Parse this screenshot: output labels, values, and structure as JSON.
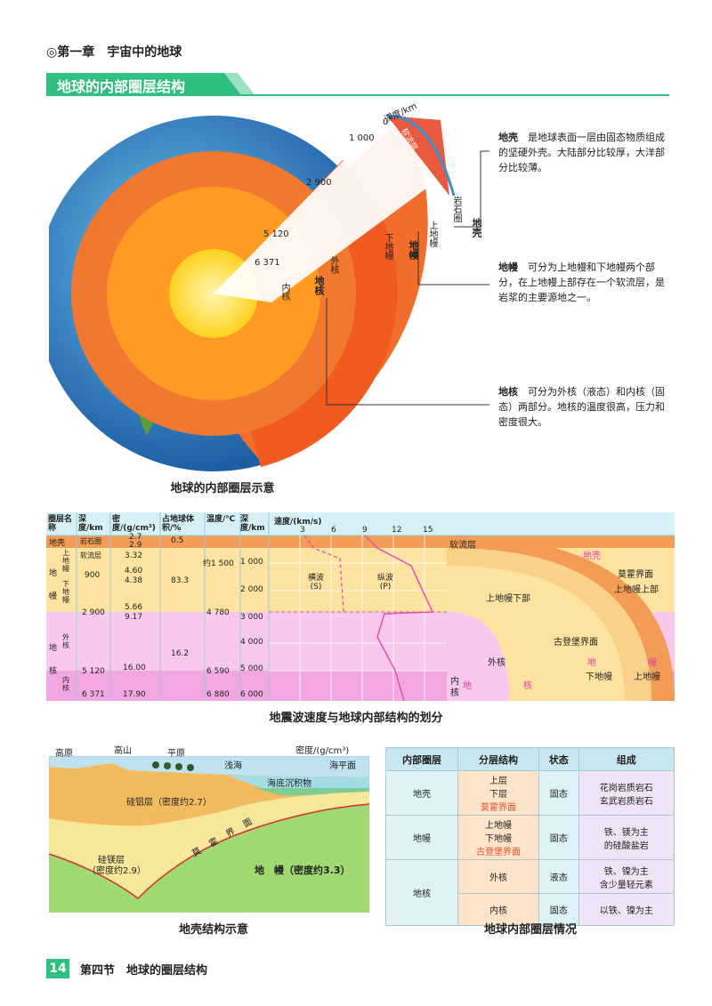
{
  "header": {
    "chapter": "◎第一章　宇宙中的地球",
    "section_title": "地球的内部圈层结构"
  },
  "globe": {
    "axis_title": "深度/km",
    "depths": [
      "0",
      "1 000",
      "2 900",
      "5 120",
      "6 371"
    ],
    "layer_labels": {
      "soft": "软流层",
      "lithosphere": "岩石圈",
      "crust": "地壳",
      "upper_mantle": "上地幔",
      "lower_mantle": "下地幔",
      "mantle": "地幔",
      "outer_core": "外核",
      "inner_core": "内核",
      "core": "地核"
    },
    "notes": [
      {
        "term": "地壳",
        "text": "是地球表面一层由固态物质组成的坚硬外壳。大陆部分比较厚，大洋部分比较薄。"
      },
      {
        "term": "地幔",
        "text": "可分为上地幔和下地幔两个部分，在上地幔上部存在一个软流层，是岩浆的主要源地之一。"
      },
      {
        "term": "地核",
        "text": "可分为外核（液态）和内核（固态）两部分。地核的温度很高，压力和密度很大。"
      }
    ],
    "caption": "地球的内部圈层示意"
  },
  "seismic": {
    "headers": [
      "圈层名称",
      "深度/km",
      "密度/(g/cm³)",
      "占地球体积/%",
      "温度/℃",
      "深度/km",
      "速度/(km/s)"
    ],
    "speed_ticks": [
      "3",
      "6",
      "9",
      "12",
      "15"
    ],
    "layers": [
      "地壳",
      "上地幔",
      "下地幔",
      "地幔",
      "外核",
      "内核",
      "地核"
    ],
    "col_values": {
      "rock": "岩石圈",
      "soft": "软流层",
      "depth_900": "900",
      "depth_2900": "2 900",
      "depth_5120": "5 120",
      "depth_6371": "6 371",
      "dens": [
        "2.7",
        "2.9",
        "3.32",
        "4.60",
        "4.38",
        "5.66",
        "9.17",
        "16.00",
        "17.90"
      ],
      "vol": [
        "0.5",
        "83.3",
        "16.2"
      ],
      "temp": [
        "约1 500",
        "4 780",
        "6 590",
        "6 880"
      ]
    },
    "depth_ticks": [
      "1 000",
      "2 000",
      "3 000",
      "4 000",
      "5 000",
      "6 000"
    ],
    "wave_s": "横波(S)",
    "wave_p": "纵波(P)",
    "right_labels": {
      "soft": "软流层",
      "crust": "地壳",
      "moho": "莫霍界面",
      "upper_top": "上地幔上部",
      "upper_bottom": "上地幔下部",
      "gutenberg": "古登堡界面",
      "outer": "外核",
      "mantle_a": "地",
      "mantle_b": "幔",
      "lower": "下地幔",
      "upper": "上地幔",
      "inner": "内核",
      "core_a": "地",
      "core_b": "核"
    },
    "caption": "地震波速度与地球内部结构的划分"
  },
  "crust_fig": {
    "landforms": [
      "高原",
      "高山",
      "平原",
      "浅海"
    ],
    "density_label": "密度/(g/cm³)",
    "sea_level": "海平面",
    "sediment": "海底沉积物",
    "sial": "硅铝层（密度约2.7）",
    "sima_a": "硅镁层",
    "sima_b": "（密度约2.9）",
    "moho": "莫霍界面",
    "mantle": "地　幔（密度约3.3）",
    "caption": "地壳结构示意"
  },
  "info_table": {
    "headers": [
      "内部圈层",
      "分层结构",
      "状态",
      "组成"
    ],
    "rows": [
      {
        "layer": "地壳",
        "structure": [
          "上层",
          "下层"
        ],
        "state": "固态",
        "comp": [
          "花岗岩质岩石",
          "玄武岩质岩石"
        ]
      },
      {
        "layer": "地幔",
        "structure": [
          "上地幔",
          "下地幔"
        ],
        "state": "固态",
        "comp": [
          "铁、镁为主",
          "的硅酸盐岩"
        ]
      },
      {
        "layer": "地核",
        "structure": [
          "外核"
        ],
        "state": "液态",
        "comp": [
          "铁、镍为主",
          "含少量轻元素"
        ]
      },
      {
        "layer": "",
        "structure": [
          "内核"
        ],
        "state": "固态",
        "comp": [
          "以铁、镍为主"
        ]
      }
    ],
    "boundary_moho": "莫霍界面",
    "boundary_gut": "古登堡界面",
    "caption": "地球内部圈层情况"
  },
  "footer": {
    "page": "14",
    "text": "第四节　地球的圈层结构"
  }
}
